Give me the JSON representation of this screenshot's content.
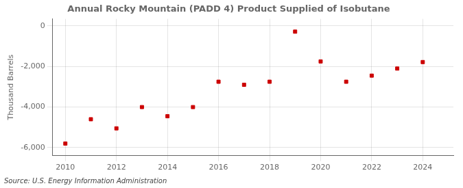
{
  "chart_data": {
    "type": "scatter",
    "title": "Annual Rocky Mountain (PADD 4) Product Supplied of Isobutane",
    "ylabel": "Thousand Barrels",
    "source": "Source: U.S. Energy Information Administration",
    "x": [
      2010,
      2011,
      2012,
      2013,
      2014,
      2015,
      2016,
      2017,
      2018,
      2019,
      2020,
      2021,
      2022,
      2023,
      2024
    ],
    "values": [
      -5800,
      -4600,
      -5050,
      -4000,
      -4450,
      -4000,
      -2750,
      -2900,
      -2750,
      -280,
      -1750,
      -2750,
      -2450,
      -2100,
      -1780
    ],
    "color": "#cc0000",
    "marker": "square",
    "xlim": [
      2009.5,
      2025.2
    ],
    "ylim": [
      -6400,
      350
    ],
    "xticks": [
      2010,
      2012,
      2014,
      2016,
      2018,
      2020,
      2022,
      2024
    ],
    "yticks": [
      0,
      {
        "value": -2000,
        "label": "-2,000"
      },
      {
        "value": -4000,
        "label": "-4,000"
      },
      {
        "value": -6000,
        "label": "-6,000"
      }
    ],
    "grid": true
  }
}
